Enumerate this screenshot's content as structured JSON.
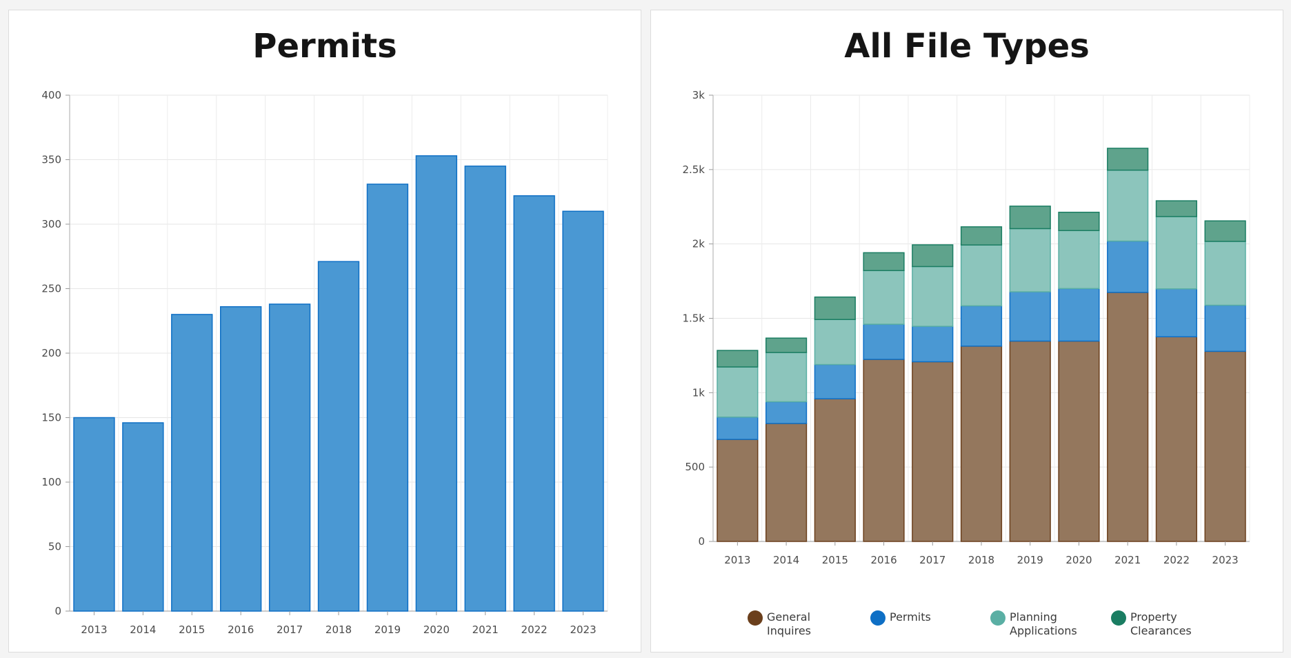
{
  "chart_data": [
    {
      "type": "bar",
      "title": "Permits",
      "categories": [
        "2013",
        "2014",
        "2015",
        "2016",
        "2017",
        "2018",
        "2019",
        "2020",
        "2021",
        "2022",
        "2023"
      ],
      "values": [
        150,
        146,
        230,
        236,
        238,
        271,
        331,
        353,
        345,
        322,
        310
      ],
      "ylim": [
        0,
        400
      ],
      "yticks": [
        "0",
        "50",
        "100",
        "150",
        "200",
        "250",
        "300",
        "350",
        "400"
      ],
      "grid": true,
      "colors": {
        "fill": "#4a98d3",
        "stroke": "#0e6fc5"
      }
    },
    {
      "type": "bar",
      "stacked": true,
      "title": "All File Types",
      "categories": [
        "2013",
        "2014",
        "2015",
        "2016",
        "2017",
        "2018",
        "2019",
        "2020",
        "2021",
        "2022",
        "2023"
      ],
      "ylim": [
        0,
        3000
      ],
      "yticks": [
        "0",
        "500",
        "1k",
        "1.5k",
        "2k",
        "2.5k",
        "3k"
      ],
      "grid": true,
      "legend_position": "bottom",
      "series": [
        {
          "name": "General Inquires",
          "color": "#6b3f1c",
          "fill": "#94775d",
          "values": [
            686,
            793,
            959,
            1224,
            1208,
            1313,
            1347,
            1347,
            1674,
            1376,
            1278
          ]
        },
        {
          "name": "Permits",
          "color": "#0e6fc5",
          "fill": "#4a98d3",
          "values": [
            150,
            146,
            230,
            236,
            238,
            271,
            331,
            353,
            345,
            322,
            310
          ]
        },
        {
          "name": "Planning Applications",
          "color": "#5aafa4",
          "fill": "#8cc5bc",
          "values": [
            337,
            331,
            303,
            361,
            402,
            409,
            425,
            390,
            477,
            486,
            429
          ]
        },
        {
          "name": "Property Clearances",
          "color": "#1a7d62",
          "fill": "#5fa38c",
          "values": [
            111,
            97,
            151,
            120,
            146,
            122,
            151,
            123,
            147,
            106,
            138
          ]
        }
      ]
    }
  ]
}
